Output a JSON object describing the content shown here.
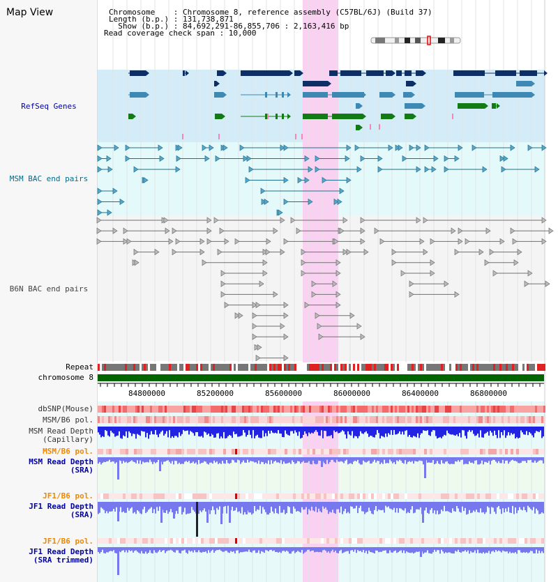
{
  "header": {
    "title": "Map View",
    "chromosome_line": "Chromosome    : Chromosome 8, reference assembly (C57BL/6J) (Build 37)",
    "length_line": "Length (b.p.) : 131,738,871",
    "show_line": "  Show (b.p.) : 84,692,291-86,855,706 : 2,163,416 bp",
    "coverage_line": "Read coverage check span : 10,000"
  },
  "labels": {
    "refseq": "RefSeq Genes",
    "msm_bac": "MSM BAC end pairs",
    "b6n_bac": "B6N BAC end pairs",
    "repeat": "Repeat",
    "chromosome": "chromosome 8",
    "dbsnp": "dbSNP(Mouse)",
    "msm_b6_pol": "MSM/B6 pol.",
    "msm_depth_cap_1": "MSM Read Depth",
    "msm_depth_cap_2": "(Capillary)",
    "msm_b6_pol_2": "MSM/B6 pol.",
    "msm_depth_sra_1": "MSM Read Depth",
    "msm_depth_sra_2": "(SRA)",
    "jf1_b6_pol": "JF1/B6 pol.",
    "jf1_depth_sra_1": "JF1 Read Depth",
    "jf1_depth_sra_2": "(SRA)",
    "jf1_b6_pol_2": "JF1/B6 pol.",
    "jf1_depth_trim_1": "JF1 Read Depth",
    "jf1_depth_trim_2": "(SRA trimmed)"
  },
  "axis": {
    "ticks": [
      "84800000",
      "85200000",
      "85600000",
      "86000000",
      "86400000",
      "86800000"
    ]
  },
  "colors": {
    "refseq_bg": "#d3ecf7",
    "msm_bg": "#e4f9f9",
    "highlight": "#f8d2f0",
    "gene_navy": "#0e2f66",
    "gene_teal": "#3d89b4",
    "gene_green": "#137b13",
    "msm_line": "#1f6e90",
    "b6n_line": "#707070",
    "chromosome_bar": "#006400",
    "dbsnp": "#f36b6b",
    "pol_light": "#f5b8b8",
    "depth_cap": "#2323e3",
    "depth_sra": "#7777ee",
    "label_blue": "#0000a0",
    "label_orange": "#ee8800",
    "label_teal": "#006b8b"
  }
}
